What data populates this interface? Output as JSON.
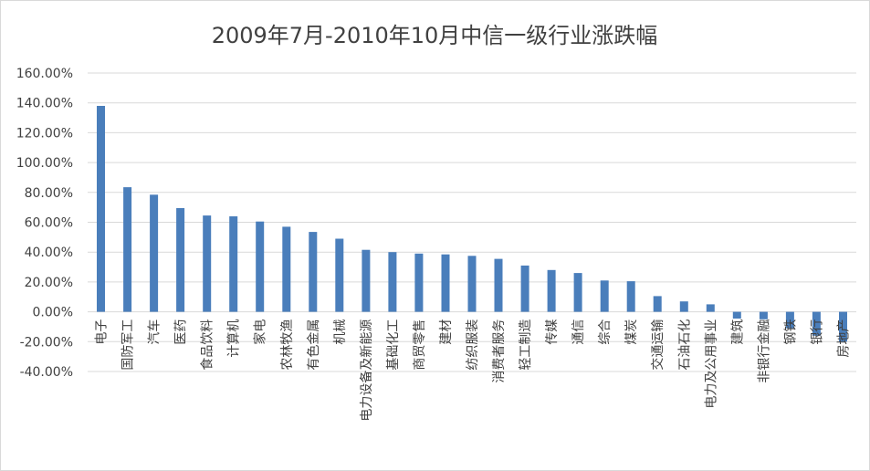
{
  "chart_data": {
    "type": "bar",
    "title": "2009年7月-2010年10月中信一级行业涨跌幅",
    "xlabel": "",
    "ylabel": "",
    "ylim": [
      -40,
      160
    ],
    "ytick_step": 20,
    "ytick_format": "percent_2dp",
    "grid": true,
    "legend": "none",
    "bar_color": "#4a7ebb",
    "categories": [
      "电子",
      "国防军工",
      "汽车",
      "医药",
      "食品饮料",
      "计算机",
      "家电",
      "农林牧渔",
      "有色金属",
      "机械",
      "电力设备及新能源",
      "基础化工",
      "商贸零售",
      "建材",
      "纺织服装",
      "消费者服务",
      "轻工制造",
      "传媒",
      "通信",
      "综合",
      "煤炭",
      "交通运输",
      "石油石化",
      "电力及公用事业",
      "建筑",
      "非银行金融",
      "钢铁",
      "银行",
      "房地产"
    ],
    "values": [
      138,
      83.5,
      78.5,
      69.5,
      64.5,
      64,
      60.5,
      57,
      53.5,
      49,
      41.5,
      40,
      39,
      38.5,
      37.5,
      35.5,
      31,
      28,
      26,
      21,
      20.5,
      10.5,
      7,
      5,
      -4.5,
      -5,
      -11,
      -16,
      -20
    ]
  }
}
